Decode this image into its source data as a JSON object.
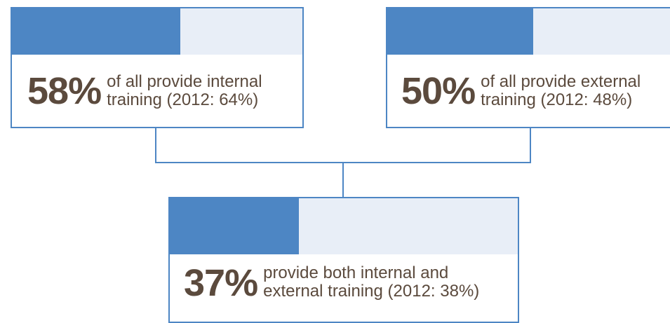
{
  "colors": {
    "accent": "#4d86c4",
    "track": "#e8eef7",
    "text": "#5b4a3d"
  },
  "internal": {
    "percent": "58%",
    "value": 58,
    "line1": "of all provide internal",
    "line2": "training (2012: 64%)"
  },
  "external": {
    "percent": "50%",
    "value": 50,
    "line1": "of all provide external",
    "line2": "training (2012: 48%)"
  },
  "both": {
    "percent": "37%",
    "value": 37,
    "line1": "provide both internal and",
    "line2": "external training (2012: 38%)"
  }
}
